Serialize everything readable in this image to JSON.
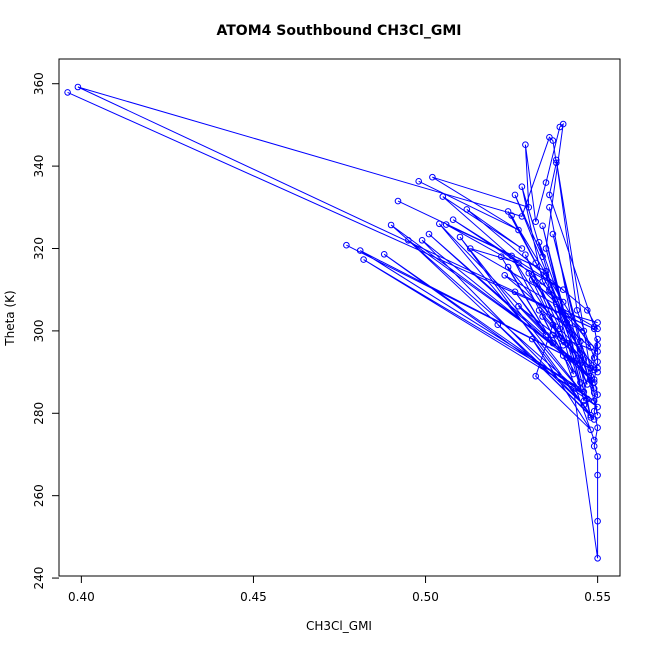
{
  "chart_data": {
    "type": "line",
    "title": "ATOM4 Southbound CH3Cl_GMI",
    "xlabel": "CH3Cl_GMI",
    "ylabel": "Theta (K)",
    "xlim": [
      0.3935,
      0.5565
    ],
    "ylim": [
      240.5,
      366.0
    ],
    "xticks": [
      0.4,
      0.45,
      0.5,
      0.55
    ],
    "xtick_labels": [
      "0.40",
      "0.45",
      "0.50",
      "0.55"
    ],
    "yticks": [
      240,
      260,
      280,
      300,
      320,
      340,
      360
    ],
    "ytick_labels": [
      "240",
      "260",
      "280",
      "300",
      "320",
      "340",
      "360"
    ],
    "grid": false,
    "legend": "none",
    "marker": "open-circle",
    "color": "#0000ff",
    "series": [
      {
        "points": [
          [
            0.396,
            357.9
          ],
          [
            0.549,
            300.5
          ],
          [
            0.399,
            359.2
          ],
          [
            0.528,
            327.8
          ],
          [
            0.536,
            347.0
          ],
          [
            0.537,
            346.2
          ],
          [
            0.538,
            340.8
          ],
          [
            0.536,
            333.0
          ],
          [
            0.549,
            301.0
          ],
          [
            0.55,
            296.5
          ],
          [
            0.55,
            292.5
          ],
          [
            0.549,
            288.2
          ],
          [
            0.55,
            284.5
          ],
          [
            0.549,
            280.5
          ],
          [
            0.55,
            276.5
          ],
          [
            0.549,
            272.0
          ],
          [
            0.55,
            269.5
          ],
          [
            0.55,
            265.0
          ],
          [
            0.55,
            253.8
          ],
          [
            0.55,
            244.8
          ],
          [
            0.543,
            286.0
          ],
          [
            0.546,
            285.2
          ],
          [
            0.55,
            298.0
          ],
          [
            0.548,
            288.0
          ],
          [
            0.544,
            292.8
          ]
        ]
      },
      {
        "points": [
          [
            0.498,
            336.3
          ],
          [
            0.527,
            324.5
          ],
          [
            0.502,
            337.3
          ],
          [
            0.53,
            330.0
          ],
          [
            0.529,
            345.2
          ],
          [
            0.532,
            326.5
          ],
          [
            0.535,
            336.0
          ],
          [
            0.539,
            349.5
          ],
          [
            0.54,
            350.2
          ],
          [
            0.535,
            320.0
          ],
          [
            0.54,
            304.5
          ],
          [
            0.55,
            302.0
          ]
        ]
      },
      {
        "points": [
          [
            0.492,
            331.5
          ],
          [
            0.535,
            314.5
          ],
          [
            0.506,
            325.8
          ],
          [
            0.54,
            310.0
          ],
          [
            0.508,
            327.0
          ],
          [
            0.527,
            316.5
          ],
          [
            0.513,
            320.0
          ],
          [
            0.54,
            307.0
          ],
          [
            0.505,
            332.6
          ],
          [
            0.528,
            320.0
          ],
          [
            0.512,
            329.5
          ],
          [
            0.547,
            305.0
          ],
          [
            0.55,
            300.5
          ],
          [
            0.523,
            313.5
          ],
          [
            0.548,
            296.0
          ],
          [
            0.524,
            329.0
          ],
          [
            0.532,
            316.5
          ],
          [
            0.525,
            328.0
          ],
          [
            0.541,
            302.0
          ],
          [
            0.526,
            333.0
          ],
          [
            0.534,
            318.0
          ],
          [
            0.528,
            335.0
          ],
          [
            0.534,
            312.0
          ],
          [
            0.545,
            297.5
          ]
        ]
      },
      {
        "points": [
          [
            0.477,
            320.8
          ],
          [
            0.55,
            290.0
          ],
          [
            0.481,
            319.5
          ],
          [
            0.545,
            286.0
          ],
          [
            0.482,
            317.3
          ],
          [
            0.549,
            283.0
          ],
          [
            0.488,
            318.6
          ],
          [
            0.55,
            281.5
          ],
          [
            0.49,
            325.7
          ],
          [
            0.545,
            292.0
          ],
          [
            0.495,
            322.0
          ],
          [
            0.546,
            282.0
          ],
          [
            0.499,
            322.0
          ],
          [
            0.548,
            289.0
          ],
          [
            0.501,
            323.5
          ],
          [
            0.549,
            287.5
          ],
          [
            0.504,
            326.0
          ],
          [
            0.547,
            283.5
          ],
          [
            0.51,
            322.8
          ],
          [
            0.549,
            278.5
          ],
          [
            0.521,
            301.5
          ],
          [
            0.548,
            279.5
          ],
          [
            0.531,
            298.0
          ],
          [
            0.548,
            276.0
          ],
          [
            0.532,
            289.0
          ],
          [
            0.537,
            301.5
          ],
          [
            0.549,
            273.5
          ]
        ]
      },
      {
        "points": [
          [
            0.522,
            318.0
          ],
          [
            0.537,
            297.0
          ],
          [
            0.524,
            315.5
          ],
          [
            0.538,
            301.0
          ],
          [
            0.525,
            318.2
          ],
          [
            0.54,
            294.0
          ],
          [
            0.526,
            309.5
          ],
          [
            0.535,
            299.0
          ],
          [
            0.527,
            306.0
          ],
          [
            0.541,
            297.0
          ],
          [
            0.529,
            318.5
          ],
          [
            0.54,
            296.5
          ],
          [
            0.53,
            314.0
          ],
          [
            0.545,
            295.5
          ],
          [
            0.531,
            312.5
          ],
          [
            0.546,
            300.0
          ],
          [
            0.533,
            305.0
          ],
          [
            0.548,
            291.0
          ],
          [
            0.534,
            303.5
          ],
          [
            0.543,
            289.5
          ],
          [
            0.535,
            313.5
          ],
          [
            0.546,
            293.0
          ],
          [
            0.536,
            310.0
          ],
          [
            0.549,
            290.5
          ],
          [
            0.537,
            299.0
          ],
          [
            0.55,
            295.0
          ],
          [
            0.538,
            306.5
          ],
          [
            0.547,
            287.0
          ],
          [
            0.539,
            300.5
          ],
          [
            0.55,
            291.0
          ],
          [
            0.541,
            293.5
          ],
          [
            0.545,
            287.5
          ],
          [
            0.542,
            296.5
          ],
          [
            0.549,
            286.0
          ]
        ]
      },
      {
        "points": [
          [
            0.536,
            330.0
          ],
          [
            0.548,
            279.0
          ],
          [
            0.534,
            325.5
          ],
          [
            0.546,
            283.0
          ],
          [
            0.533,
            321.5
          ],
          [
            0.549,
            285.0
          ],
          [
            0.537,
            323.5
          ],
          [
            0.55,
            279.5
          ],
          [
            0.538,
            341.5
          ],
          [
            0.544,
            305.0
          ],
          [
            0.549,
            293.5
          ]
        ]
      }
    ]
  }
}
